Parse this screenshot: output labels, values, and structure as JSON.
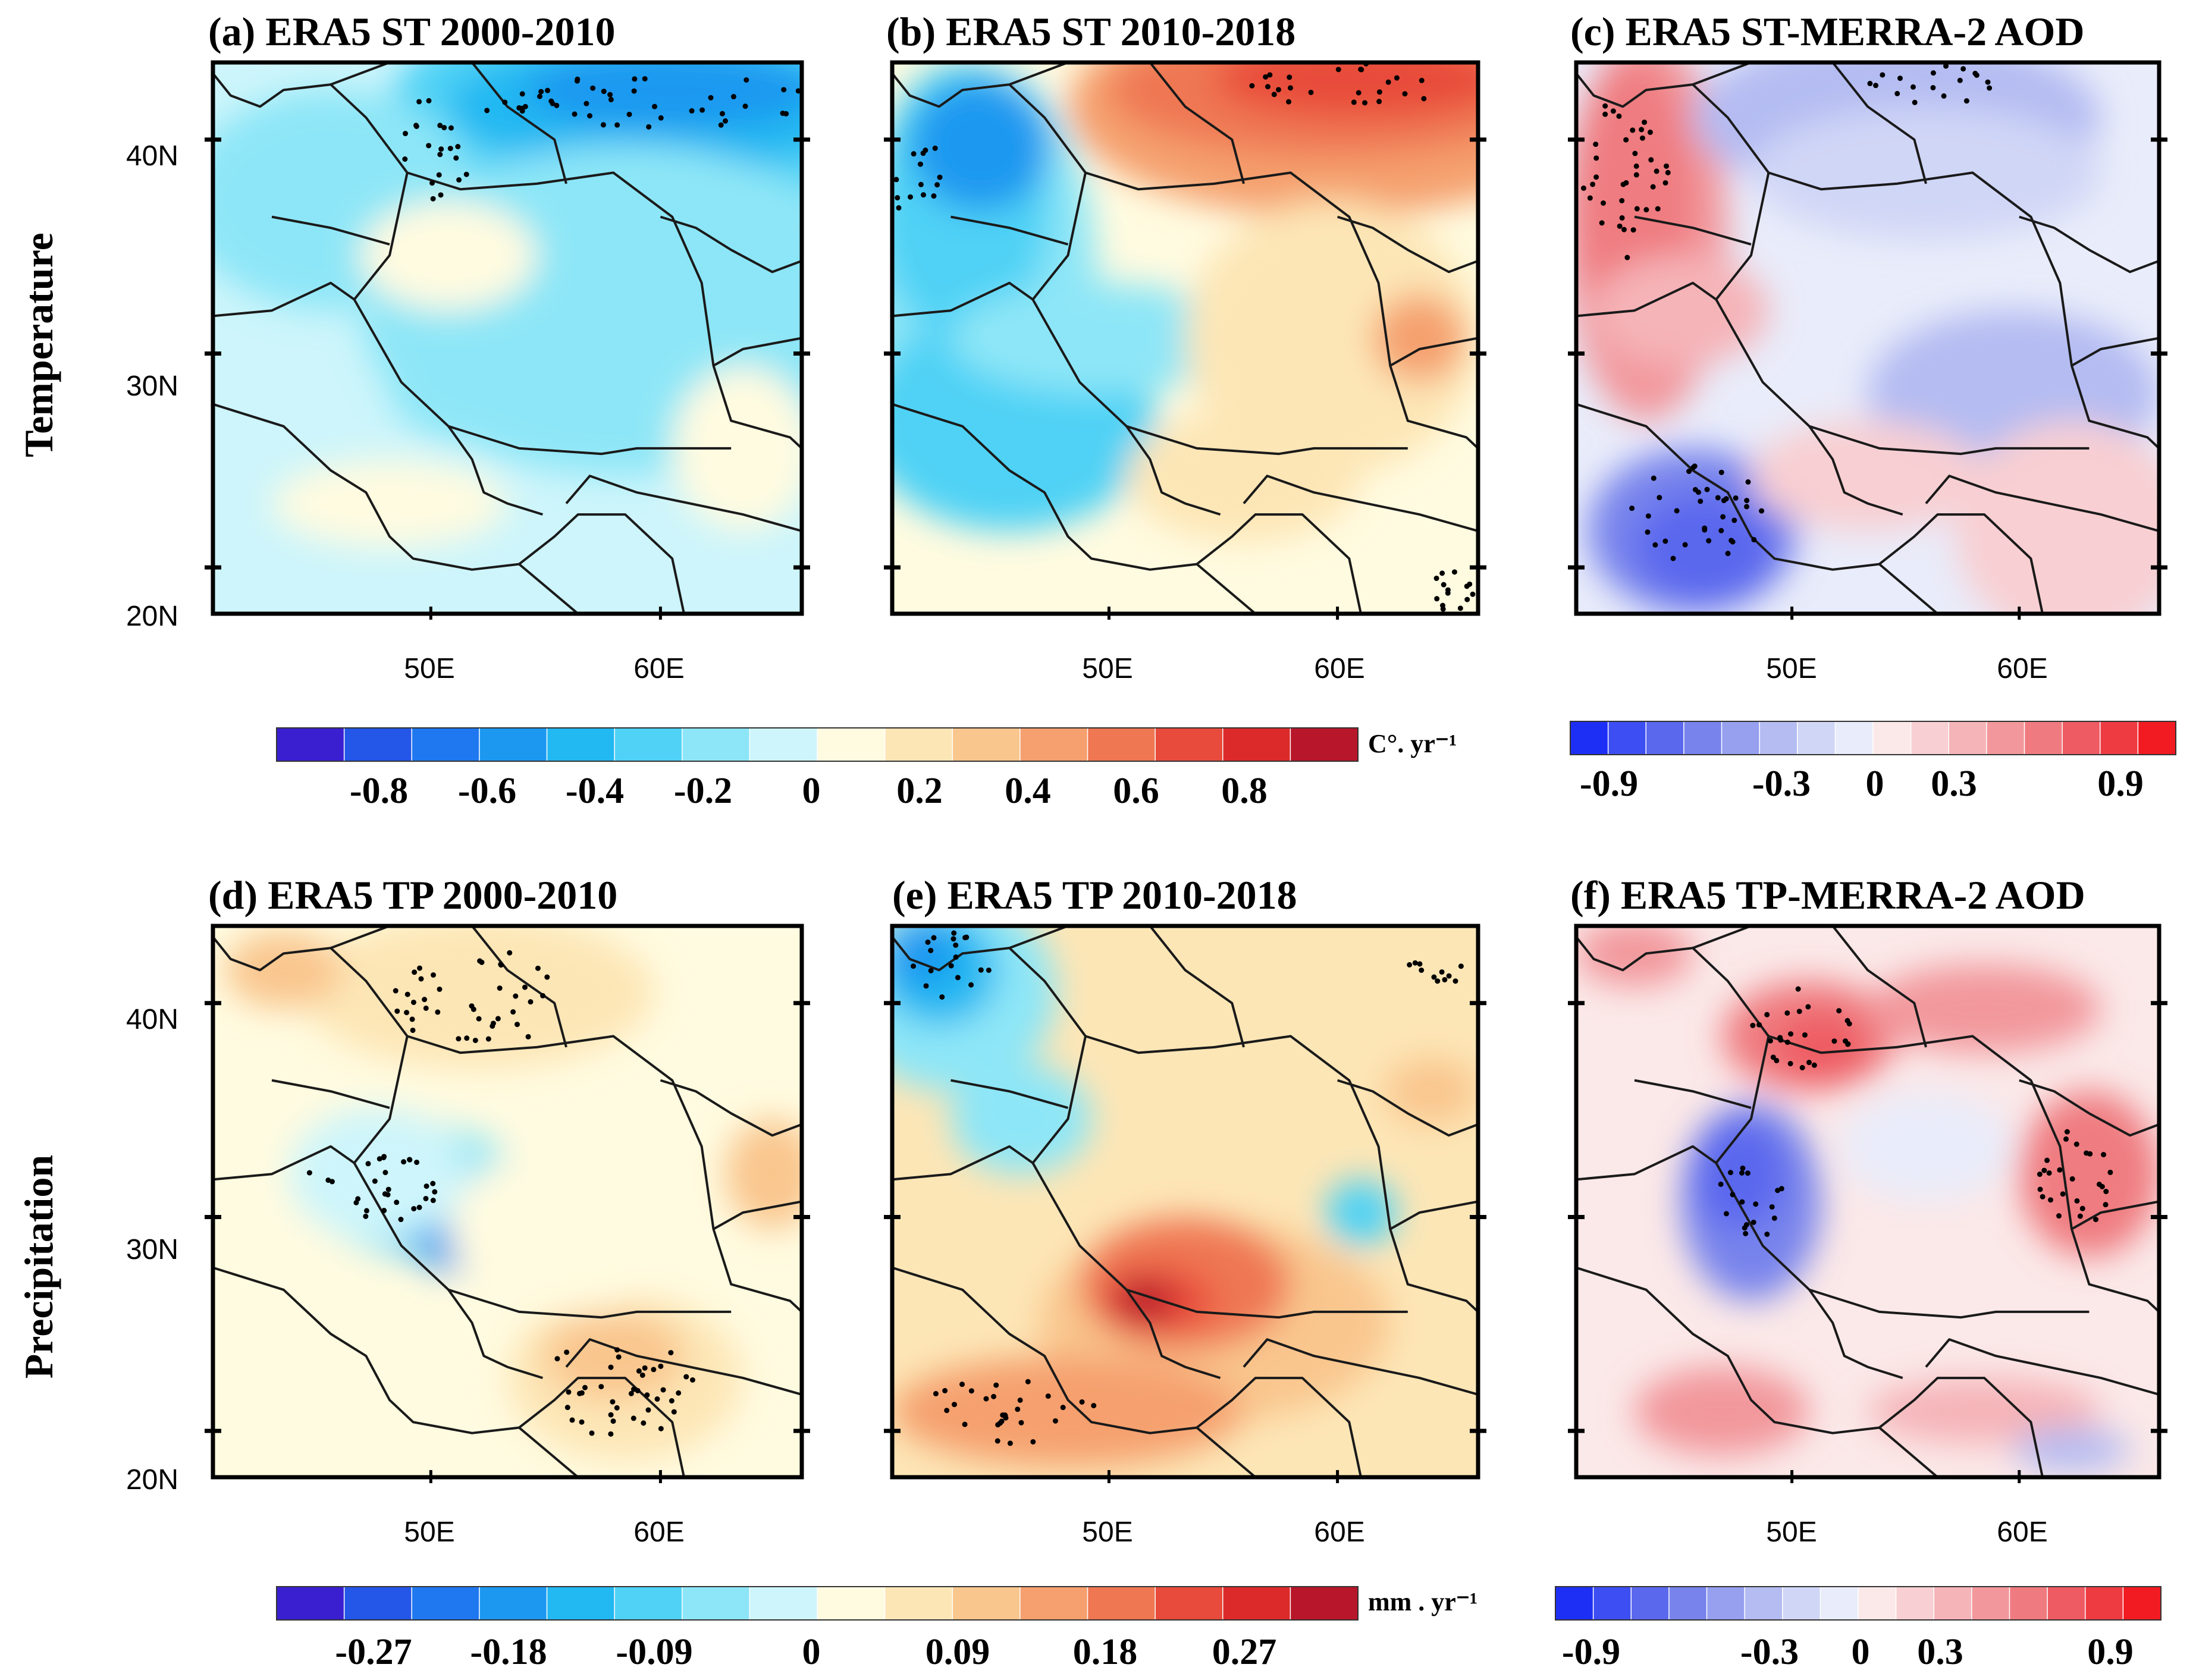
{
  "figure": {
    "row_labels": [
      "Temperature",
      "Precipitation"
    ],
    "lat_ticks": [
      "40N",
      "30N",
      "20N"
    ],
    "lon_ticks": [
      "50E",
      "60E"
    ]
  },
  "panels": [
    {
      "id": "a",
      "title": "(a) ERA5 ST 2000-2010",
      "variable": "surface temperature trend",
      "pattern": "temp_0010"
    },
    {
      "id": "b",
      "title": "(b) ERA5 ST 2010-2018",
      "variable": "surface temperature trend",
      "pattern": "temp_1018"
    },
    {
      "id": "c",
      "title": "(c) ERA5 ST-MERRA-2 AOD",
      "variable": "correlation",
      "pattern": "temp_corr"
    },
    {
      "id": "d",
      "title": "(d) ERA5 TP 2000-2010",
      "variable": "precipitation trend",
      "pattern": "prec_0010"
    },
    {
      "id": "e",
      "title": "(e) ERA5 TP 2010-2018",
      "variable": "precipitation trend",
      "pattern": "prec_1018"
    },
    {
      "id": "f",
      "title": "(f) ERA5 TP-MERRA-2 AOD",
      "variable": "correlation",
      "pattern": "prec_corr"
    }
  ],
  "colorbars": {
    "temperature_trend": {
      "unit": "C°. yr⁻¹",
      "labels": [
        "-0.8",
        "-0.6",
        "-0.4",
        "-0.2",
        "0",
        "0.2",
        "0.4",
        "0.6",
        "0.8"
      ],
      "colors": [
        "#3a1fd0",
        "#2456e8",
        "#1f78f0",
        "#1c98f0",
        "#22b8f2",
        "#4fd2f5",
        "#8de6f7",
        "#cdf5fb",
        "#fffbe0",
        "#fde6b6",
        "#f9c68e",
        "#f5a06e",
        "#ef7752",
        "#e84b3b",
        "#dc2a2a",
        "#b8162a"
      ]
    },
    "temperature_corr": {
      "labels": [
        "-0.9",
        "-0.3",
        "0",
        "0.3",
        "0.9"
      ],
      "colors": [
        "#1e2ff5",
        "#3d4ef2",
        "#5a68ee",
        "#7884ec",
        "#96a0ee",
        "#b4bcf2",
        "#d0d6f6",
        "#e9ecfa",
        "#fbe8e8",
        "#f8cfd2",
        "#f5b4b8",
        "#f2989c",
        "#ef7b80",
        "#ee5b62",
        "#ee3b42",
        "#f21b22"
      ]
    },
    "precip_trend": {
      "unit": "mm . yr⁻¹",
      "labels": [
        "-0.27",
        "-0.18",
        "-0.09",
        "0",
        "0.09",
        "0.18",
        "0.27"
      ],
      "colors": [
        "#3a1fd0",
        "#2456e8",
        "#1f78f0",
        "#1c98f0",
        "#22b8f2",
        "#4fd2f5",
        "#8de6f7",
        "#cdf5fb",
        "#fffbe0",
        "#fde6b6",
        "#f9c68e",
        "#f5a06e",
        "#ef7752",
        "#e84b3b",
        "#dc2a2a",
        "#b8162a"
      ]
    },
    "precip_corr": {
      "labels": [
        "-0.9",
        "-0.3",
        "0",
        "0.3",
        "0.9"
      ],
      "colors": [
        "#1e2ff5",
        "#3d4ef2",
        "#5a68ee",
        "#7884ec",
        "#96a0ee",
        "#b4bcf2",
        "#d0d6f6",
        "#e9ecfa",
        "#fbe8e8",
        "#f8cfd2",
        "#f5b4b8",
        "#f2989c",
        "#ef7b80",
        "#ee5b62",
        "#ee3b42",
        "#f21b22"
      ]
    }
  }
}
